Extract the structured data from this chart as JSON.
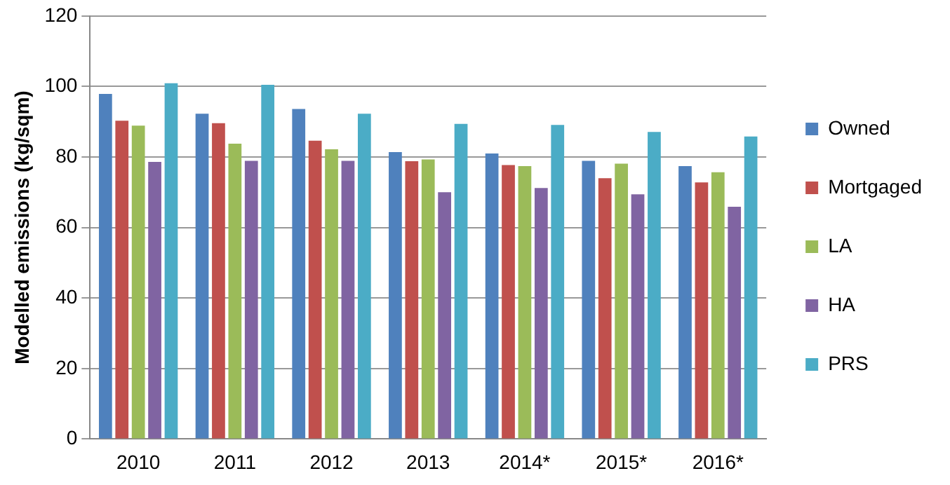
{
  "chart_data": {
    "type": "bar",
    "ylabel": "Modelled emissions (kg/sqm)",
    "categories": [
      "2010",
      "2011",
      "2012",
      "2013",
      "2014*",
      "2015*",
      "2016*"
    ],
    "series": [
      {
        "name": "Owned",
        "color": "#4f81bd",
        "values": [
          97.9,
          92.3,
          93.6,
          81.4,
          81.0,
          78.9,
          77.4
        ]
      },
      {
        "name": "Mortgaged",
        "color": "#c0504d",
        "values": [
          90.3,
          89.6,
          84.6,
          78.8,
          77.7,
          74.0,
          72.8
        ]
      },
      {
        "name": "LA",
        "color": "#9bbb59",
        "values": [
          88.9,
          83.8,
          82.2,
          79.3,
          77.4,
          78.1,
          75.7
        ]
      },
      {
        "name": "HA",
        "color": "#8064a2",
        "values": [
          78.6,
          78.9,
          78.9,
          70.0,
          71.2,
          69.4,
          65.9
        ]
      },
      {
        "name": "PRS",
        "color": "#4bacc6",
        "values": [
          100.9,
          100.5,
          92.3,
          89.4,
          89.1,
          87.1,
          85.8
        ]
      }
    ],
    "ylim": [
      0,
      120
    ],
    "yticks": [
      0,
      20,
      40,
      60,
      80,
      100,
      120
    ],
    "grid": "y",
    "legend": "right"
  }
}
